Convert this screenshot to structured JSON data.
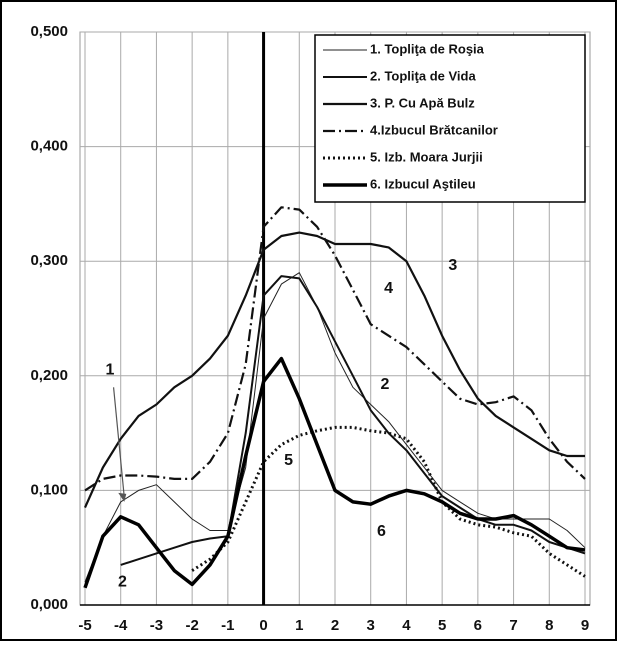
{
  "chart_data": {
    "type": "line",
    "x": [
      -5,
      -4.5,
      -4,
      -3.5,
      -3,
      -2.5,
      -2,
      -1.5,
      -1,
      -0.5,
      0,
      0.5,
      1,
      1.5,
      2,
      2.5,
      3,
      3.5,
      4,
      4.5,
      5,
      5.5,
      6,
      6.5,
      7,
      7.5,
      8,
      8.5,
      9
    ],
    "series": [
      {
        "name": "1. Topliţa de Roşia",
        "color": "#222222",
        "line_width": 1,
        "line_style": "solid",
        "values": [
          0.02,
          0.06,
          0.09,
          0.1,
          0.105,
          0.09,
          0.075,
          0.065,
          0.065,
          0.12,
          0.25,
          0.28,
          0.29,
          0.26,
          0.22,
          0.19,
          0.175,
          0.16,
          0.14,
          0.12,
          0.1,
          0.09,
          0.08,
          0.075,
          0.075,
          0.075,
          0.075,
          0.065,
          0.05
        ]
      },
      {
        "name": "2. Topliţa de Vida",
        "color": "#111111",
        "line_width": 2,
        "line_style": "solid",
        "values": [
          null,
          null,
          0.035,
          0.04,
          0.045,
          0.05,
          0.055,
          0.058,
          0.06,
          0.15,
          0.27,
          0.287,
          0.285,
          0.26,
          0.23,
          0.2,
          0.17,
          0.15,
          0.135,
          0.115,
          0.095,
          0.085,
          0.075,
          0.07,
          0.07,
          0.065,
          0.055,
          0.05,
          0.045
        ]
      },
      {
        "name": "3. P. Cu Apă Bulz",
        "color": "#111111",
        "line_width": 2.2,
        "line_style": "solid",
        "values": [
          0.085,
          0.12,
          0.145,
          0.165,
          0.175,
          0.19,
          0.2,
          0.215,
          0.235,
          0.27,
          0.31,
          0.322,
          0.325,
          0.322,
          0.315,
          0.315,
          0.315,
          0.312,
          0.3,
          0.27,
          0.235,
          0.205,
          0.18,
          0.165,
          0.155,
          0.145,
          0.135,
          0.13,
          0.13
        ]
      },
      {
        "name": "4.Izbucul Brătcanilor",
        "color": "#111111",
        "line_width": 2.2,
        "line_style": "dashdot",
        "values": [
          0.1,
          0.11,
          0.113,
          0.113,
          0.112,
          0.11,
          0.11,
          0.125,
          0.15,
          0.21,
          0.33,
          0.347,
          0.345,
          0.33,
          0.305,
          0.275,
          0.245,
          0.235,
          0.225,
          0.21,
          0.195,
          0.18,
          0.175,
          0.177,
          0.182,
          0.17,
          0.145,
          0.125,
          0.11
        ]
      },
      {
        "name": "5. Izb. Moara Jurjii",
        "color": "#111111",
        "line_width": 3,
        "line_style": "dotted",
        "values": [
          null,
          null,
          null,
          null,
          null,
          null,
          0.03,
          0.04,
          0.055,
          0.09,
          0.125,
          0.14,
          0.148,
          0.152,
          0.155,
          0.155,
          0.152,
          0.15,
          0.145,
          0.125,
          0.09,
          0.075,
          0.07,
          0.068,
          0.063,
          0.06,
          0.045,
          0.035,
          0.025
        ]
      },
      {
        "name": "6. Izbucul Aştileu",
        "color": "#000000",
        "line_width": 3.5,
        "line_style": "solid",
        "values": [
          0.015,
          0.06,
          0.077,
          0.07,
          0.05,
          0.03,
          0.018,
          0.035,
          0.06,
          0.13,
          0.195,
          0.215,
          0.18,
          0.14,
          0.1,
          0.09,
          0.088,
          0.095,
          0.1,
          0.097,
          0.09,
          0.08,
          0.075,
          0.075,
          0.078,
          0.07,
          0.06,
          0.05,
          0.048
        ]
      }
    ],
    "annotations": [
      "1",
      "2",
      "3",
      "4",
      "5",
      "6",
      "2"
    ],
    "xlim": [
      -5,
      9
    ],
    "xticks": [
      -5,
      -4,
      -3,
      -2,
      -1,
      0,
      1,
      2,
      3,
      4,
      5,
      6,
      7,
      8,
      9
    ],
    "ylim": [
      0,
      0.5
    ],
    "yticks": [
      {
        "value": 0,
        "label": "0,000"
      },
      {
        "value": 0.1,
        "label": "0,100"
      },
      {
        "value": 0.2,
        "label": "0,200"
      },
      {
        "value": 0.3,
        "label": "0,300"
      },
      {
        "value": 0.4,
        "label": "0,400"
      },
      {
        "value": 0.5,
        "label": "0,500"
      }
    ],
    "grid": true,
    "legend": "top-right"
  }
}
